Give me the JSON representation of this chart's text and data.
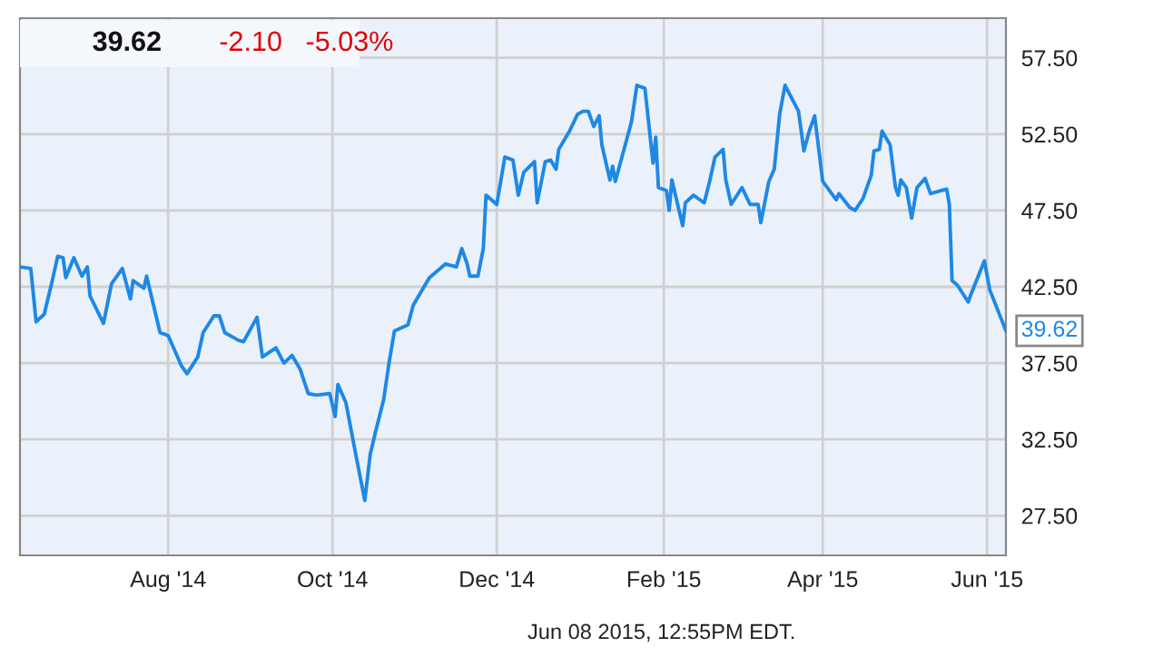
{
  "chart_data": {
    "type": "line",
    "x": [
      "2014-06-07",
      "2014-06-11",
      "2014-06-13",
      "2014-06-16",
      "2014-06-19",
      "2014-06-21",
      "2014-06-23",
      "2014-06-24",
      "2014-06-27",
      "2014-06-30",
      "2014-07-02",
      "2014-07-03",
      "2014-07-08",
      "2014-07-11",
      "2014-07-15",
      "2014-07-18",
      "2014-07-19",
      "2014-07-23",
      "2014-07-24",
      "2014-07-29",
      "2014-08-01",
      "2014-08-06",
      "2014-08-08",
      "2014-08-12",
      "2014-08-14",
      "2014-08-18",
      "2014-08-20",
      "2014-08-22",
      "2014-08-27",
      "2014-08-29",
      "2014-09-03",
      "2014-09-05",
      "2014-09-10",
      "2014-09-13",
      "2014-09-16",
      "2014-09-19",
      "2014-09-22",
      "2014-09-25",
      "2014-09-30",
      "2014-10-02",
      "2014-10-03",
      "2014-10-06",
      "2014-10-10",
      "2014-10-13",
      "2014-10-15",
      "2014-10-17",
      "2014-10-20",
      "2014-10-22",
      "2014-10-24",
      "2014-10-29",
      "2014-10-31",
      "2014-11-04",
      "2014-11-06",
      "2014-11-12",
      "2014-11-16",
      "2014-11-18",
      "2014-11-20",
      "2014-11-21",
      "2014-11-24",
      "2014-11-26",
      "2014-11-27",
      "2014-12-01",
      "2014-12-04",
      "2014-12-07",
      "2014-12-09",
      "2014-12-11",
      "2014-12-15",
      "2014-12-16",
      "2014-12-19",
      "2014-12-21",
      "2014-12-23",
      "2014-12-24",
      "2014-12-28",
      "2014-12-31",
      "2015-01-02",
      "2015-01-04",
      "2015-01-06",
      "2015-01-08",
      "2015-01-09",
      "2015-01-12",
      "2015-01-13",
      "2015-01-14",
      "2015-01-20",
      "2015-01-22",
      "2015-01-25",
      "2015-01-28",
      "2015-01-29",
      "2015-01-30",
      "2015-02-02",
      "2015-02-03",
      "2015-02-04",
      "2015-02-08",
      "2015-02-09",
      "2015-02-12",
      "2015-02-16",
      "2015-02-18",
      "2015-02-20",
      "2015-02-23",
      "2015-02-24",
      "2015-02-26",
      "2015-03-02",
      "2015-03-05",
      "2015-03-08",
      "2015-03-09",
      "2015-03-12",
      "2015-03-14",
      "2015-03-16",
      "2015-03-18",
      "2015-03-23",
      "2015-03-25",
      "2015-03-27",
      "2015-03-29",
      "2015-04-01",
      "2015-04-06",
      "2015-04-07",
      "2015-04-11",
      "2015-04-13",
      "2015-04-16",
      "2015-04-19",
      "2015-04-20",
      "2015-04-22",
      "2015-04-23",
      "2015-04-26",
      "2015-04-28",
      "2015-04-29",
      "2015-04-30",
      "2015-05-02",
      "2015-05-04",
      "2015-05-06",
      "2015-05-09",
      "2015-05-11",
      "2015-05-13",
      "2015-05-17",
      "2015-05-18",
      "2015-05-19",
      "2015-05-21",
      "2015-05-25",
      "2015-05-26",
      "2015-05-31",
      "2015-06-02",
      "2015-06-08"
    ],
    "series": [
      {
        "color": "#1e88e5",
        "values": [
          43.8,
          43.7,
          40.2,
          40.7,
          42.9,
          44.5,
          44.4,
          43.1,
          44.4,
          43.2,
          43.8,
          41.9,
          40.1,
          42.7,
          43.7,
          41.7,
          42.9,
          42.4,
          43.2,
          39.5,
          39.3,
          37.3,
          36.8,
          37.9,
          39.5,
          40.6,
          40.6,
          39.5,
          39.0,
          38.9,
          40.5,
          37.9,
          38.5,
          37.5,
          38.0,
          37.1,
          35.5,
          35.4,
          35.5,
          34.0,
          36.1,
          34.9,
          31.2,
          28.5,
          31.5,
          33.0,
          35.1,
          37.5,
          39.6,
          40.0,
          41.3,
          42.5,
          43.1,
          44.0,
          43.8,
          45.0,
          44.0,
          43.2,
          43.2,
          45.0,
          48.5,
          47.9,
          51.0,
          50.8,
          48.5,
          50.0,
          50.7,
          48.0,
          50.7,
          50.8,
          50.2,
          51.5,
          52.7,
          53.8,
          54.0,
          54.0,
          53.0,
          53.7,
          51.8,
          49.5,
          50.4,
          49.4,
          53.3,
          55.7,
          55.5,
          50.6,
          52.3,
          49.0,
          48.8,
          47.5,
          49.5,
          46.5,
          48.0,
          48.5,
          48.0,
          49.4,
          51.0,
          51.5,
          49.5,
          47.9,
          49.0,
          47.9,
          47.9,
          46.7,
          49.4,
          50.2,
          53.8,
          55.7,
          54.0,
          51.4,
          52.7,
          53.7,
          49.4,
          48.2,
          48.6,
          47.7,
          47.5,
          48.3,
          49.8,
          51.4,
          51.5,
          52.7,
          51.8,
          49.0,
          48.5,
          49.5,
          49.0,
          47.0,
          49.0,
          49.6,
          48.6,
          48.7,
          48.9,
          47.9,
          42.9,
          42.6,
          41.5,
          42.0,
          44.2,
          42.3,
          39.62
        ]
      }
    ],
    "xlim": [
      "2014-06-07",
      "2015-06-08"
    ],
    "ylim": [
      24.9,
      60.1
    ],
    "xticks": [
      {
        "value": "2014-08-01",
        "label": "Aug '14"
      },
      {
        "value": "2014-10-01",
        "label": "Oct '14"
      },
      {
        "value": "2014-12-01",
        "label": "Dec '14"
      },
      {
        "value": "2015-02-01",
        "label": "Feb '15"
      },
      {
        "value": "2015-04-01",
        "label": "Apr '15"
      },
      {
        "value": "2015-06-01",
        "label": "Jun '15"
      }
    ],
    "yticks": [
      {
        "value": 27.5,
        "label": "27.50"
      },
      {
        "value": 32.5,
        "label": "32.50"
      },
      {
        "value": 37.5,
        "label": "37.50"
      },
      {
        "value": 42.5,
        "label": "42.50"
      },
      {
        "value": 47.5,
        "label": "47.50"
      },
      {
        "value": 52.5,
        "label": "52.50"
      },
      {
        "value": 57.5,
        "label": "57.50"
      }
    ],
    "grid": true,
    "annotations": [
      "39.62",
      "-2.10",
      "-5.03%",
      {
        "text": "39.62",
        "x": "2015-06-08",
        "y": 39.62
      },
      "Jun 08 2015, 12:55PM EDT."
    ]
  }
}
